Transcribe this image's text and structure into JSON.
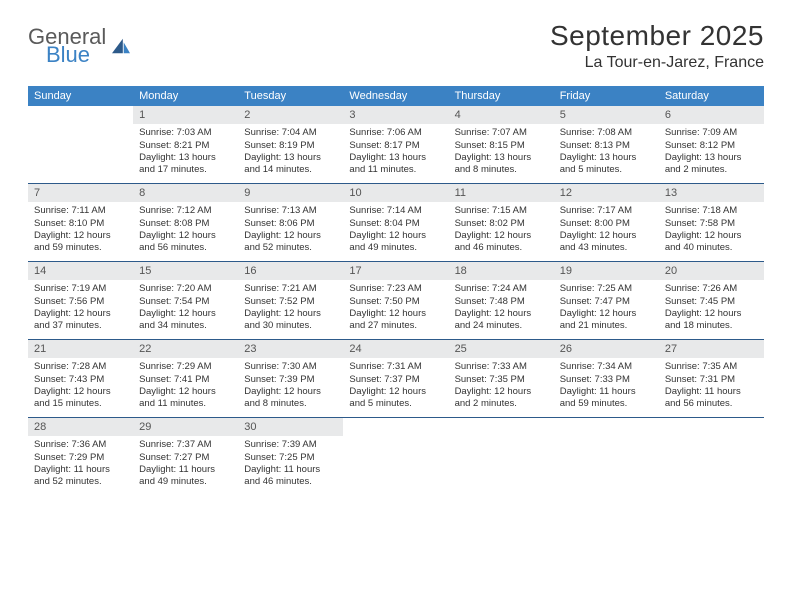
{
  "branding": {
    "logo_general": "General",
    "logo_blue": "Blue"
  },
  "header": {
    "month_title": "September 2025",
    "location": "La Tour-en-Jarez, France"
  },
  "colors": {
    "header_bg": "#3b82c4",
    "daynum_bg": "#e8e9ea",
    "rule": "#2d5a8a",
    "text": "#333333"
  },
  "weekdays": [
    "Sunday",
    "Monday",
    "Tuesday",
    "Wednesday",
    "Thursday",
    "Friday",
    "Saturday"
  ],
  "start_offset": 1,
  "days": [
    {
      "n": "1",
      "sr": "Sunrise: 7:03 AM",
      "ss": "Sunset: 8:21 PM",
      "dl": "Daylight: 13 hours and 17 minutes."
    },
    {
      "n": "2",
      "sr": "Sunrise: 7:04 AM",
      "ss": "Sunset: 8:19 PM",
      "dl": "Daylight: 13 hours and 14 minutes."
    },
    {
      "n": "3",
      "sr": "Sunrise: 7:06 AM",
      "ss": "Sunset: 8:17 PM",
      "dl": "Daylight: 13 hours and 11 minutes."
    },
    {
      "n": "4",
      "sr": "Sunrise: 7:07 AM",
      "ss": "Sunset: 8:15 PM",
      "dl": "Daylight: 13 hours and 8 minutes."
    },
    {
      "n": "5",
      "sr": "Sunrise: 7:08 AM",
      "ss": "Sunset: 8:13 PM",
      "dl": "Daylight: 13 hours and 5 minutes."
    },
    {
      "n": "6",
      "sr": "Sunrise: 7:09 AM",
      "ss": "Sunset: 8:12 PM",
      "dl": "Daylight: 13 hours and 2 minutes."
    },
    {
      "n": "7",
      "sr": "Sunrise: 7:11 AM",
      "ss": "Sunset: 8:10 PM",
      "dl": "Daylight: 12 hours and 59 minutes."
    },
    {
      "n": "8",
      "sr": "Sunrise: 7:12 AM",
      "ss": "Sunset: 8:08 PM",
      "dl": "Daylight: 12 hours and 56 minutes."
    },
    {
      "n": "9",
      "sr": "Sunrise: 7:13 AM",
      "ss": "Sunset: 8:06 PM",
      "dl": "Daylight: 12 hours and 52 minutes."
    },
    {
      "n": "10",
      "sr": "Sunrise: 7:14 AM",
      "ss": "Sunset: 8:04 PM",
      "dl": "Daylight: 12 hours and 49 minutes."
    },
    {
      "n": "11",
      "sr": "Sunrise: 7:15 AM",
      "ss": "Sunset: 8:02 PM",
      "dl": "Daylight: 12 hours and 46 minutes."
    },
    {
      "n": "12",
      "sr": "Sunrise: 7:17 AM",
      "ss": "Sunset: 8:00 PM",
      "dl": "Daylight: 12 hours and 43 minutes."
    },
    {
      "n": "13",
      "sr": "Sunrise: 7:18 AM",
      "ss": "Sunset: 7:58 PM",
      "dl": "Daylight: 12 hours and 40 minutes."
    },
    {
      "n": "14",
      "sr": "Sunrise: 7:19 AM",
      "ss": "Sunset: 7:56 PM",
      "dl": "Daylight: 12 hours and 37 minutes."
    },
    {
      "n": "15",
      "sr": "Sunrise: 7:20 AM",
      "ss": "Sunset: 7:54 PM",
      "dl": "Daylight: 12 hours and 34 minutes."
    },
    {
      "n": "16",
      "sr": "Sunrise: 7:21 AM",
      "ss": "Sunset: 7:52 PM",
      "dl": "Daylight: 12 hours and 30 minutes."
    },
    {
      "n": "17",
      "sr": "Sunrise: 7:23 AM",
      "ss": "Sunset: 7:50 PM",
      "dl": "Daylight: 12 hours and 27 minutes."
    },
    {
      "n": "18",
      "sr": "Sunrise: 7:24 AM",
      "ss": "Sunset: 7:48 PM",
      "dl": "Daylight: 12 hours and 24 minutes."
    },
    {
      "n": "19",
      "sr": "Sunrise: 7:25 AM",
      "ss": "Sunset: 7:47 PM",
      "dl": "Daylight: 12 hours and 21 minutes."
    },
    {
      "n": "20",
      "sr": "Sunrise: 7:26 AM",
      "ss": "Sunset: 7:45 PM",
      "dl": "Daylight: 12 hours and 18 minutes."
    },
    {
      "n": "21",
      "sr": "Sunrise: 7:28 AM",
      "ss": "Sunset: 7:43 PM",
      "dl": "Daylight: 12 hours and 15 minutes."
    },
    {
      "n": "22",
      "sr": "Sunrise: 7:29 AM",
      "ss": "Sunset: 7:41 PM",
      "dl": "Daylight: 12 hours and 11 minutes."
    },
    {
      "n": "23",
      "sr": "Sunrise: 7:30 AM",
      "ss": "Sunset: 7:39 PM",
      "dl": "Daylight: 12 hours and 8 minutes."
    },
    {
      "n": "24",
      "sr": "Sunrise: 7:31 AM",
      "ss": "Sunset: 7:37 PM",
      "dl": "Daylight: 12 hours and 5 minutes."
    },
    {
      "n": "25",
      "sr": "Sunrise: 7:33 AM",
      "ss": "Sunset: 7:35 PM",
      "dl": "Daylight: 12 hours and 2 minutes."
    },
    {
      "n": "26",
      "sr": "Sunrise: 7:34 AM",
      "ss": "Sunset: 7:33 PM",
      "dl": "Daylight: 11 hours and 59 minutes."
    },
    {
      "n": "27",
      "sr": "Sunrise: 7:35 AM",
      "ss": "Sunset: 7:31 PM",
      "dl": "Daylight: 11 hours and 56 minutes."
    },
    {
      "n": "28",
      "sr": "Sunrise: 7:36 AM",
      "ss": "Sunset: 7:29 PM",
      "dl": "Daylight: 11 hours and 52 minutes."
    },
    {
      "n": "29",
      "sr": "Sunrise: 7:37 AM",
      "ss": "Sunset: 7:27 PM",
      "dl": "Daylight: 11 hours and 49 minutes."
    },
    {
      "n": "30",
      "sr": "Sunrise: 7:39 AM",
      "ss": "Sunset: 7:25 PM",
      "dl": "Daylight: 11 hours and 46 minutes."
    }
  ]
}
